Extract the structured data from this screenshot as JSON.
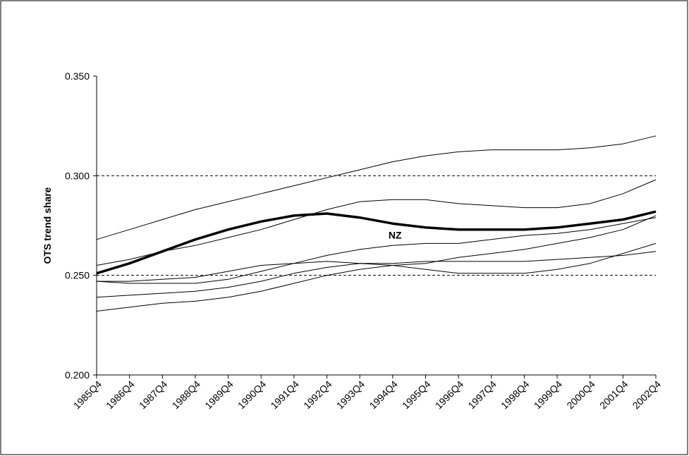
{
  "chart_data": {
    "type": "line",
    "y_label": "OTS trend share",
    "categories": [
      "1985Q4",
      "1986Q4",
      "1987Q4",
      "1988Q4",
      "1989Q4",
      "1990Q4",
      "1991Q4",
      "1992Q4",
      "1993Q4",
      "1994Q4",
      "1995Q4",
      "1996Q4",
      "1997Q4",
      "1998Q4",
      "1999Q4",
      "2000Q4",
      "2001Q4",
      "2002Q4"
    ],
    "series": [
      {
        "name": "NZ",
        "color": "#000000",
        "line_width": 3.5,
        "values": [
          0.251,
          0.256,
          0.262,
          0.268,
          0.273,
          0.277,
          0.28,
          0.281,
          0.279,
          0.276,
          0.274,
          0.273,
          0.273,
          0.273,
          0.274,
          0.276,
          0.278,
          0.282
        ]
      },
      {
        "color": "#000000",
        "line_width": 1,
        "values": [
          0.268,
          0.273,
          0.278,
          0.283,
          0.287,
          0.291,
          0.295,
          0.299,
          0.303,
          0.307,
          0.31,
          0.312,
          0.313,
          0.313,
          0.313,
          0.314,
          0.316,
          0.32
        ]
      },
      {
        "color": "#000000",
        "line_width": 1,
        "values": [
          0.255,
          0.258,
          0.262,
          0.265,
          0.269,
          0.273,
          0.278,
          0.283,
          0.287,
          0.288,
          0.288,
          0.286,
          0.285,
          0.284,
          0.284,
          0.286,
          0.291,
          0.298
        ]
      },
      {
        "color": "#000000",
        "line_width": 1,
        "values": [
          0.247,
          0.246,
          0.246,
          0.246,
          0.248,
          0.252,
          0.256,
          0.26,
          0.263,
          0.265,
          0.266,
          0.266,
          0.268,
          0.27,
          0.271,
          0.273,
          0.276,
          0.279
        ]
      },
      {
        "color": "#000000",
        "line_width": 1,
        "values": [
          0.247,
          0.247,
          0.248,
          0.249,
          0.252,
          0.255,
          0.256,
          0.257,
          0.256,
          0.255,
          0.253,
          0.251,
          0.251,
          0.251,
          0.253,
          0.256,
          0.261,
          0.266
        ]
      },
      {
        "color": "#000000",
        "line_width": 1,
        "values": [
          0.239,
          0.24,
          0.241,
          0.242,
          0.244,
          0.247,
          0.251,
          0.254,
          0.256,
          0.256,
          0.257,
          0.257,
          0.257,
          0.257,
          0.258,
          0.259,
          0.26,
          0.262
        ]
      },
      {
        "color": "#000000",
        "line_width": 1,
        "values": [
          0.232,
          0.234,
          0.236,
          0.237,
          0.239,
          0.242,
          0.246,
          0.25,
          0.253,
          0.255,
          0.256,
          0.259,
          0.261,
          0.263,
          0.266,
          0.269,
          0.273,
          0.28
        ]
      }
    ],
    "ylim": [
      0.2,
      0.35
    ],
    "yticks": [
      {
        "value": 0.2,
        "label": "0.200"
      },
      {
        "value": 0.25,
        "label": "0.250"
      },
      {
        "value": 0.3,
        "label": "0.300"
      },
      {
        "value": 0.35,
        "label": "0.350"
      }
    ],
    "grid": true
  }
}
